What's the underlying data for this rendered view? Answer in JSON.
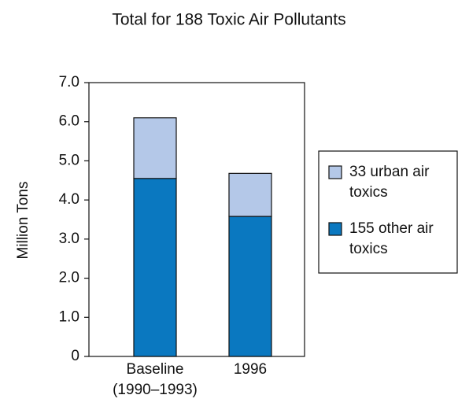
{
  "chart_data": {
    "type": "stacked_bar",
    "title": "Total for 188 Toxic Air Pollutants",
    "ylabel": "Million Tons",
    "categories": [
      "Baseline (1990–1993)",
      "1996"
    ],
    "series": [
      {
        "name": "155 other air toxics",
        "color": "#0a78c0",
        "values": [
          4.55,
          3.58
        ]
      },
      {
        "name": "33 urban air toxics",
        "color": "#b4c8e8",
        "values": [
          1.55,
          1.1
        ]
      }
    ],
    "ylim": [
      0,
      7
    ],
    "yticks": [
      0,
      {
        "value": 1,
        "label": "1.0"
      },
      {
        "value": 2,
        "label": "2.0"
      },
      {
        "value": 3,
        "label": "3.0"
      },
      {
        "value": 4,
        "label": "4.0"
      },
      {
        "value": 5,
        "label": "5.0"
      },
      {
        "value": 6,
        "label": "6.0"
      },
      {
        "value": 7,
        "label": "7.0"
      }
    ],
    "legend": "right"
  }
}
